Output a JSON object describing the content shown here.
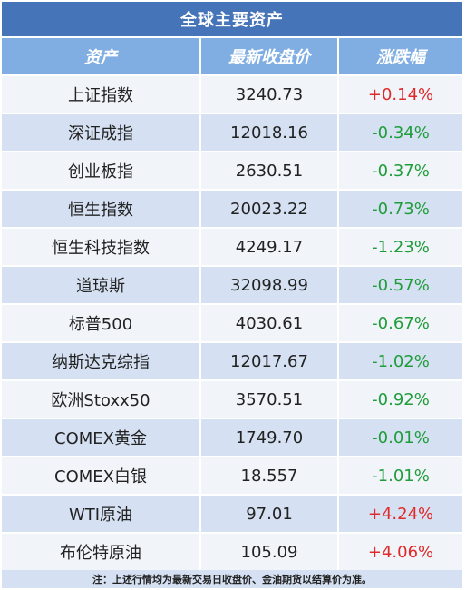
{
  "title": "全球主要资产",
  "headers": [
    "资产",
    "最新收盘价",
    "涨跌幅"
  ],
  "rows": [
    {
      "asset": "上证指数",
      "price": "3240.73",
      "change": "+0.14%",
      "dir": "up"
    },
    {
      "asset": "深证成指",
      "price": "12018.16",
      "change": "-0.34%",
      "dir": "down"
    },
    {
      "asset": "创业板指",
      "price": "2630.51",
      "change": "-0.37%",
      "dir": "down"
    },
    {
      "asset": "恒生指数",
      "price": "20023.22",
      "change": "-0.73%",
      "dir": "down"
    },
    {
      "asset": "恒生科技指数",
      "price": "4249.17",
      "change": "-1.23%",
      "dir": "down"
    },
    {
      "asset": "道琼斯",
      "price": "32098.99",
      "change": "-0.57%",
      "dir": "down"
    },
    {
      "asset": "标普500",
      "price": "4030.61",
      "change": "-0.67%",
      "dir": "down"
    },
    {
      "asset": "纳斯达克综指",
      "price": "12017.67",
      "change": "-1.02%",
      "dir": "down"
    },
    {
      "asset": "欧洲Stoxx50",
      "price": "3570.51",
      "change": "-0.92%",
      "dir": "down"
    },
    {
      "asset": "COMEX黄金",
      "price": "1749.70",
      "change": "-0.01%",
      "dir": "down"
    },
    {
      "asset": "COMEX白银",
      "price": "18.557",
      "change": "-1.01%",
      "dir": "down"
    },
    {
      "asset": "WTI原油",
      "price": "97.01",
      "change": "+4.24%",
      "dir": "up"
    },
    {
      "asset": "布伦特原油",
      "price": "105.09",
      "change": "+4.06%",
      "dir": "up"
    }
  ],
  "note": "注：上述行情均为最新交易日收盘价、金油期货以结算价为准。",
  "colors": {
    "up": "#e02a2a",
    "down": "#1f9d3a",
    "title_bg": "#4674b8",
    "header_bg": "#80aee2"
  }
}
